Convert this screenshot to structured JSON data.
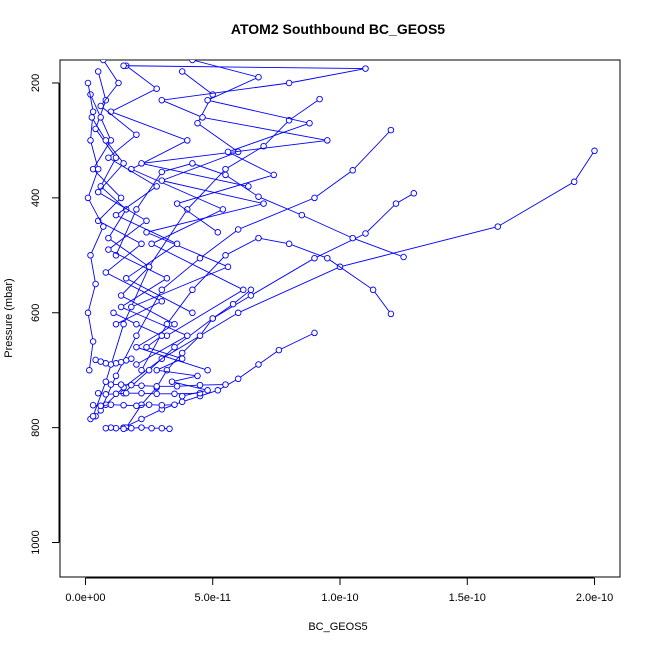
{
  "chart_data": {
    "type": "line",
    "title": "ATOM2 Southbound BC_GEOS5",
    "xlabel": "BC_GEOS5",
    "ylabel": "Pressure (mbar)",
    "xlim": [
      -1e-11,
      2.1e-10
    ],
    "ylim": [
      1060,
      160
    ],
    "y_inverted": true,
    "x_ticks": [
      0,
      5e-11,
      1e-10,
      1.5e-10,
      2e-10
    ],
    "x_tick_labels": [
      "0.0e+00",
      "5.0e-11",
      "1.0e-10",
      "1.5e-10",
      "2.0e-10"
    ],
    "y_ticks": [
      200,
      400,
      600,
      800,
      1000
    ],
    "y_tick_labels": [
      "200",
      "400",
      "600",
      "800",
      "1000"
    ],
    "grid": false,
    "legend": "none",
    "series_color": "#0000ff",
    "marker": "open-circle",
    "series": [
      {
        "x": [
          2e-10,
          1.92e-10,
          1.62e-10,
          1e-10,
          6e-11,
          3e-11,
          1.5e-11,
          8e-12,
          4e-12,
          2e-12
        ],
        "y": [
          318,
          372,
          450,
          520,
          600,
          680,
          730,
          760,
          780,
          785
        ]
      },
      {
        "x": [
          9.2e-11,
          8e-11,
          7e-11,
          5.5e-11,
          4e-11,
          2.5e-11,
          1.5e-11,
          8e-12,
          3e-12
        ],
        "y": [
          228,
          265,
          310,
          350,
          420,
          520,
          620,
          720,
          780
        ]
      },
      {
        "x": [
          1.2e-10,
          1.05e-10,
          9e-11,
          6e-11,
          4.5e-11,
          3e-11,
          2e-11,
          1.2e-11,
          6e-12
        ],
        "y": [
          282,
          352,
          400,
          455,
          505,
          560,
          640,
          710,
          770
        ]
      },
      {
        "x": [
          1.29e-10,
          1.22e-10,
          1.1e-10,
          9e-11,
          6.5e-11,
          5e-11,
          3.5e-11,
          2.5e-11,
          1.5e-11
        ],
        "y": [
          392,
          410,
          462,
          505,
          570,
          610,
          660,
          700,
          740
        ]
      },
      {
        "x": [
          1.2e-10,
          1.13e-10,
          9.5e-11,
          8e-11,
          6.8e-11,
          5.5e-11,
          4.2e-11,
          3.2e-11,
          2.2e-11
        ],
        "y": [
          602,
          560,
          505,
          480,
          470,
          500,
          560,
          620,
          700
        ]
      },
      {
        "x": [
          9e-11,
          7.6e-11,
          6.8e-11,
          6e-11,
          5.2e-11,
          4.5e-11,
          3.8e-11,
          3e-11,
          2.2e-11,
          1.5e-11
        ],
        "y": [
          635,
          665,
          690,
          715,
          735,
          745,
          755,
          768,
          785,
          800
        ]
      },
      {
        "x": [
          1.25e-10,
          1.05e-10,
          8.5e-11,
          6.8e-11,
          5.5e-11,
          4.2e-11,
          3e-11,
          2e-11,
          1.2e-11
        ],
        "y": [
          503,
          470,
          430,
          398,
          360,
          340,
          355,
          420,
          500
        ]
      },
      {
        "x": [
          6.5e-11,
          5.8e-11,
          5e-11,
          4.5e-11,
          3.8e-11,
          3.2e-11,
          2.8e-11,
          2.2e-11,
          1.6e-11
        ],
        "y": [
          560,
          585,
          610,
          640,
          670,
          700,
          730,
          760,
          800
        ]
      },
      {
        "x": [
          3.3e-11,
          3e-11,
          2.6e-11,
          2.2e-11,
          1.8e-11,
          1.5e-11,
          1.2e-11,
          1e-11,
          8e-12
        ],
        "y": [
          802,
          801,
          801,
          800,
          801,
          802,
          801,
          800,
          801
        ]
      },
      {
        "x": [
          5.5e-11,
          4.5e-11,
          3.6e-11,
          2.8e-11,
          2.2e-11,
          1.8e-11,
          1.4e-11,
          1e-11
        ],
        "y": [
          725,
          726,
          728,
          728,
          727,
          726,
          725,
          725
        ]
      },
      {
        "x": [
          4.5e-11,
          3.5e-11,
          2.8e-11,
          2.2e-11,
          1.6e-11,
          1.2e-11,
          8e-12,
          5e-12
        ],
        "y": [
          740,
          741,
          741,
          740,
          740,
          741,
          742,
          740
        ]
      },
      {
        "x": [
          3.5e-11,
          3e-11,
          2.5e-11,
          2e-11,
          1.5e-11,
          1e-11,
          6e-12,
          3e-12
        ],
        "y": [
          760,
          761,
          760,
          762,
          761,
          760,
          762,
          761
        ]
      },
      {
        "x": [
          1.8e-11,
          1.6e-11,
          1.4e-11,
          1.2e-11,
          1e-11,
          8e-12,
          6e-12,
          4e-12
        ],
        "y": [
          680,
          683,
          686,
          688,
          690,
          688,
          685,
          682
        ]
      },
      {
        "x": [
          5e-12,
          8e-12,
          4e-12,
          1.2e-11,
          6e-12,
          1.6e-11,
          9e-12,
          2.5e-11,
          1.4e-11,
          3.5e-11,
          2e-11,
          4.8e-11
        ],
        "y": [
          180,
          230,
          280,
          330,
          380,
          420,
          470,
          520,
          570,
          620,
          660,
          700
        ]
      },
      {
        "x": [
          2e-12,
          6e-12,
          1e-11,
          3e-12,
          1.4e-11,
          5e-12,
          2.2e-11,
          8e-12,
          3e-11,
          1.2e-11
        ],
        "y": [
          220,
          260,
          300,
          350,
          400,
          440,
          480,
          530,
          580,
          620
        ]
      },
      {
        "x": [
          1e-12,
          3e-12,
          2e-12,
          5e-12,
          1e-12,
          7e-12,
          2e-12,
          4e-12,
          1e-12,
          3e-12,
          1.5e-12
        ],
        "y": [
          200,
          250,
          300,
          350,
          400,
          450,
          500,
          550,
          600,
          650,
          700
        ]
      },
      {
        "x": [
          1.6e-11,
          2.8e-11,
          1e-11,
          4e-11,
          1.8e-11,
          5.4e-11,
          2.6e-11,
          6.2e-11,
          3.2e-11
        ],
        "y": [
          170,
          210,
          250,
          300,
          350,
          420,
          480,
          560,
          640
        ]
      },
      {
        "x": [
          3.8e-11,
          5e-11,
          4.4e-11,
          6e-11,
          3e-11,
          7e-11,
          2.4e-11,
          5.6e-11,
          1.8e-11
        ],
        "y": [
          180,
          220,
          270,
          320,
          370,
          410,
          460,
          520,
          590
        ]
      },
      {
        "x": [
          1.5e-11,
          1.1e-10,
          8e-11,
          3e-11,
          4.6e-11,
          9.5e-11,
          2.2e-11,
          6.4e-11
        ],
        "y": [
          170,
          175,
          200,
          230,
          260,
          300,
          340,
          380
        ]
      },
      {
        "x": [
          7e-12,
          1.3e-11,
          6e-12,
          2e-11,
          9e-12,
          2.8e-11,
          1.2e-11,
          3.6e-11,
          1.6e-11,
          4.2e-11
        ],
        "y": [
          160,
          200,
          240,
          290,
          330,
          380,
          430,
          480,
          540,
          600
        ]
      },
      {
        "x": [
          2.5e-12,
          8e-12,
          1.5e-11,
          5e-12,
          2.4e-11,
          9e-12,
          3.2e-11,
          1.4e-11,
          4e-11,
          2e-11
        ],
        "y": [
          260,
          300,
          340,
          390,
          440,
          490,
          540,
          590,
          640,
          690
        ]
      },
      {
        "x": [
          4.2e-11,
          6.8e-11,
          4.8e-11,
          8.8e-11,
          5.6e-11,
          7.4e-11,
          3.6e-11,
          5.2e-11
        ],
        "y": [
          160,
          190,
          230,
          270,
          320,
          360,
          410,
          460
        ]
      },
      {
        "x": [
          1.1e-11,
          2e-11,
          3e-11,
          2.4e-11,
          3.8e-11,
          2.8e-11,
          4.4e-11,
          3.4e-11,
          4.8e-11,
          3.8e-11
        ],
        "y": [
          600,
          620,
          640,
          660,
          680,
          700,
          710,
          720,
          735,
          745
        ]
      }
    ]
  }
}
